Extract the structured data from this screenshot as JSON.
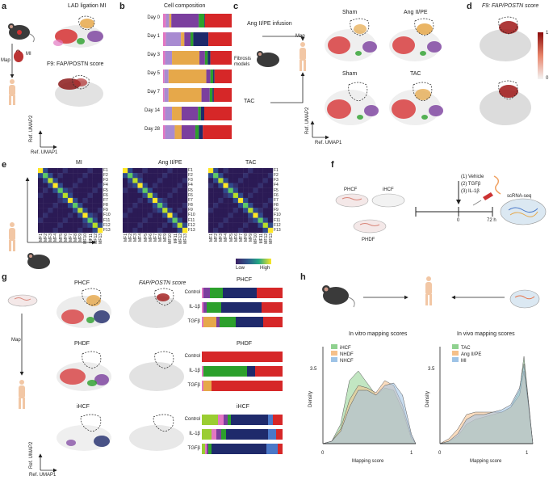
{
  "colors": {
    "red": "#d62728",
    "orange": "#e6a84a",
    "purple": "#7b3f9e",
    "green": "#2ca02c",
    "navy": "#1f2a6b",
    "pink": "#e377c2",
    "blue": "#4a78c8",
    "lilac": "#a88bd1",
    "grey": "#cfcfcf",
    "density_green": "#8fd18f",
    "density_orange": "#f5c08a",
    "density_blue": "#9ec3e6"
  },
  "panel_labels": {
    "a": "a",
    "b": "b",
    "c": "c",
    "d": "d",
    "e": "e",
    "f": "f",
    "g": "g",
    "h": "h"
  },
  "panel_a": {
    "title1": "LAD ligation MI",
    "title2": "F9: FAP/POSTN score",
    "mi": "MI",
    "map": "Map",
    "axis_y": "Ref. UMAP2",
    "axis_x": "Ref. UMAP1"
  },
  "panel_c": {
    "angii_infusion": "Ang II/PE infusion",
    "fibrosis_models": "Fibrosis models",
    "map": "Map",
    "tac": "TAC",
    "sham_top": "Sham",
    "angii_top": "Ang II/PE",
    "sham_bottom": "Sham",
    "tac_bottom": "TAC",
    "axis_y": "Ref. UMAP2",
    "axis_x": "Ref. UMAP1"
  },
  "panel_d": {
    "title": "F9: FAP/POSTN score",
    "scale_max": "1",
    "scale_min": "0"
  },
  "panel_e": {
    "matrix_titles": [
      "MI",
      "Ang II/PE",
      "TAC"
    ],
    "row_labels": [
      "F1",
      "F2",
      "F3",
      "F4",
      "F5",
      "F6",
      "F7",
      "F8",
      "F9",
      "F10",
      "F11",
      "F12",
      "F13"
    ],
    "col_labels": [
      "MF1",
      "MF2",
      "MF3",
      "MF4",
      "MF5",
      "MF6",
      "MF7",
      "MF8",
      "MF9",
      "MF10",
      "MF11",
      "MF12",
      "MF13"
    ],
    "legend_low": "Low",
    "legend_high": "High"
  },
  "panel_f": {
    "phcf": "PHCF",
    "ihcf": "iHCF",
    "phdf": "PHDF",
    "treatments": [
      "(1) Vehicle",
      "(2) TGFβ",
      "(3) IL-1β"
    ],
    "t0": "0",
    "t72": "72 h",
    "scrnaseq": "scRNA-seq"
  },
  "panel_g": {
    "rows": [
      "PHCF",
      "PHDF",
      "iHCF"
    ],
    "score_title": "FAP/POSTN score",
    "map": "Map",
    "axis_y": "Ref. UMAP2",
    "axis_x": "Ref. UMAP1",
    "bar_titles": [
      "PHCF",
      "PHDF",
      "iHCF"
    ],
    "bar_conditions": [
      "Control",
      "IL-1β",
      "TGFβ"
    ]
  },
  "panel_h": {
    "left_title": "In vitro mapping scores",
    "right_title": "In vivo mapping scores",
    "left_legend": [
      "iHCF",
      "NHDF",
      "NHCF"
    ],
    "right_legend": [
      "TAC",
      "Ang II/PE",
      "MI"
    ],
    "ylabel": "Density",
    "xlabel": "Mapping score",
    "ytick": "3.5",
    "xtick0": "0",
    "xtick1": "1"
  },
  "chart_data": [
    {
      "type": "bar",
      "title": "Cell composition",
      "orientation": "horizontal-stacked",
      "categories": [
        "Day 0",
        "Day 1",
        "Day 3",
        "Day 5",
        "Day 7",
        "Day 14",
        "Day 28"
      ],
      "segment_colors": [
        "#e377c2",
        "#a88bd1",
        "#e6a84a",
        "#7b3f9e",
        "#2ca02c",
        "#1f2a6b",
        "#d62728"
      ],
      "rows": [
        [
          0.04,
          0.05,
          0.03,
          0.4,
          0.08,
          0.01,
          0.39
        ],
        [
          0.04,
          0.22,
          0.05,
          0.09,
          0.04,
          0.22,
          0.34
        ],
        [
          0.03,
          0.1,
          0.4,
          0.08,
          0.04,
          0.04,
          0.31
        ],
        [
          0.02,
          0.06,
          0.55,
          0.06,
          0.04,
          0.02,
          0.25
        ],
        [
          0.02,
          0.06,
          0.48,
          0.12,
          0.04,
          0.02,
          0.26
        ],
        [
          0.03,
          0.1,
          0.14,
          0.24,
          0.04,
          0.05,
          0.4
        ],
        [
          0.03,
          0.14,
          0.1,
          0.2,
          0.05,
          0.06,
          0.42
        ]
      ]
    },
    {
      "type": "bar",
      "title": "PHCF",
      "orientation": "horizontal-stacked",
      "categories": [
        "Control",
        "IL-1β",
        "TGFβ"
      ],
      "segment_colors": [
        "#e377c2",
        "#a88bd1",
        "#e6a84a",
        "#7b3f9e",
        "#2ca02c",
        "#1f2a6b",
        "#d62728"
      ],
      "rows": [
        [
          0.02,
          0.0,
          0.0,
          0.08,
          0.16,
          0.42,
          0.32
        ],
        [
          0.02,
          0.0,
          0.0,
          0.04,
          0.18,
          0.5,
          0.26
        ],
        [
          0.02,
          0.0,
          0.16,
          0.04,
          0.2,
          0.34,
          0.24
        ]
      ]
    },
    {
      "type": "bar",
      "title": "PHDF",
      "orientation": "horizontal-stacked",
      "categories": [
        "Control",
        "IL-1β",
        "TGFβ"
      ],
      "segment_colors": [
        "#e377c2",
        "#a88bd1",
        "#e6a84a",
        "#7b3f9e",
        "#2ca02c",
        "#1f2a6b",
        "#d62728"
      ],
      "rows": [
        [
          0.0,
          0.0,
          0.0,
          0.0,
          0.0,
          0.0,
          1.0
        ],
        [
          0.02,
          0.0,
          0.0,
          0.0,
          0.54,
          0.1,
          0.34
        ],
        [
          0.02,
          0.0,
          0.1,
          0.0,
          0.0,
          0.0,
          0.88
        ]
      ]
    },
    {
      "type": "bar",
      "title": "iHCF",
      "orientation": "horizontal-stacked",
      "categories": [
        "Control",
        "IL-1β",
        "TGFβ"
      ],
      "segment_colors": [
        "#9acd32",
        "#e377c2",
        "#7b3f9e",
        "#2ca02c",
        "#1f2a6b",
        "#4a78c8",
        "#d62728"
      ],
      "rows": [
        [
          0.2,
          0.07,
          0.05,
          0.04,
          0.46,
          0.06,
          0.12
        ],
        [
          0.12,
          0.06,
          0.06,
          0.06,
          0.52,
          0.1,
          0.08
        ],
        [
          0.04,
          0.02,
          0.02,
          0.04,
          0.68,
          0.14,
          0.06
        ]
      ]
    },
    {
      "type": "area",
      "title": "In vitro mapping scores",
      "xlabel": "Mapping score",
      "ylabel": "Density",
      "xlim": [
        0,
        1.05
      ],
      "ylim": [
        0,
        4
      ],
      "x": [
        0,
        0.1,
        0.2,
        0.3,
        0.4,
        0.5,
        0.6,
        0.7,
        0.8,
        0.9,
        1.0,
        1.05
      ],
      "series": [
        {
          "name": "iHCF",
          "color": "#8fd18f",
          "values": [
            0,
            0.1,
            0.8,
            2.6,
            3.0,
            2.5,
            2.0,
            2.3,
            2.2,
            1.4,
            0.2,
            0
          ]
        },
        {
          "name": "NHDF",
          "color": "#f5c08a",
          "values": [
            0,
            0.1,
            0.6,
            1.8,
            2.4,
            2.3,
            2.1,
            2.6,
            2.4,
            1.6,
            0.3,
            0
          ]
        },
        {
          "name": "NHCF",
          "color": "#9ec3e6",
          "values": [
            0,
            0.1,
            0.5,
            1.5,
            2.2,
            2.2,
            2.0,
            2.4,
            2.5,
            2.0,
            0.4,
            0
          ]
        }
      ]
    },
    {
      "type": "area",
      "title": "In vivo mapping scores",
      "xlabel": "Mapping score",
      "ylabel": "Density",
      "xlim": [
        0,
        1.05
      ],
      "ylim": [
        0,
        4
      ],
      "x": [
        0,
        0.1,
        0.2,
        0.3,
        0.4,
        0.5,
        0.6,
        0.7,
        0.8,
        0.9,
        0.95,
        1.0,
        1.05
      ],
      "series": [
        {
          "name": "TAC",
          "color": "#8fd18f",
          "values": [
            0,
            0.1,
            0.3,
            0.8,
            1.0,
            1.1,
            1.2,
            1.3,
            1.5,
            2.2,
            3.6,
            1.8,
            0
          ]
        },
        {
          "name": "Ang II/PE",
          "color": "#f5c08a",
          "values": [
            0,
            0.2,
            0.6,
            1.2,
            1.3,
            1.3,
            1.3,
            1.3,
            1.5,
            2.0,
            3.0,
            1.6,
            0
          ]
        },
        {
          "name": "MI",
          "color": "#9ec3e6",
          "values": [
            0,
            0.1,
            0.4,
            1.0,
            1.2,
            1.2,
            1.3,
            1.4,
            1.6,
            2.3,
            3.3,
            1.7,
            0
          ]
        }
      ]
    }
  ]
}
